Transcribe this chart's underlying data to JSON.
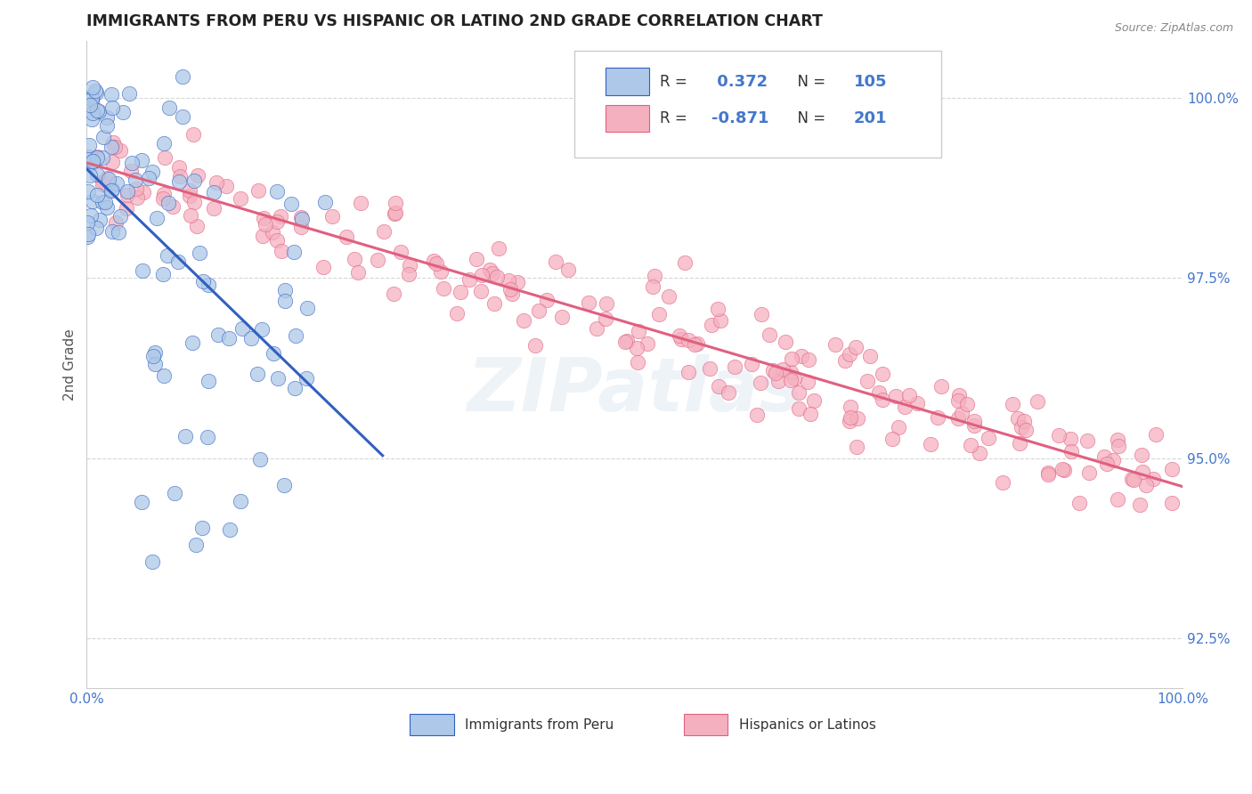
{
  "title": "IMMIGRANTS FROM PERU VS HISPANIC OR LATINO 2ND GRADE CORRELATION CHART",
  "source": "Source: ZipAtlas.com",
  "ylabel": "2nd Grade",
  "xlim": [
    0.0,
    100.0
  ],
  "ylim": [
    91.8,
    100.8
  ],
  "yticks": [
    92.5,
    95.0,
    97.5,
    100.0
  ],
  "xticks": [
    0.0,
    100.0
  ],
  "xtick_labels": [
    "0.0%",
    "100.0%"
  ],
  "ytick_labels": [
    "92.5%",
    "95.0%",
    "97.5%",
    "100.0%"
  ],
  "blue_R": 0.372,
  "blue_N": 105,
  "pink_R": -0.871,
  "pink_N": 201,
  "blue_color": "#adc8e8",
  "pink_color": "#f5b0c0",
  "blue_line_color": "#3060c0",
  "pink_line_color": "#e06080",
  "legend_label_blue": "Immigrants from Peru",
  "legend_label_pink": "Hispanics or Latinos",
  "watermark": "ZIPatlas",
  "grid_color": "#cccccc",
  "title_color": "#222222",
  "axis_label_color": "#555555",
  "tick_label_color": "#4477cc",
  "source_color": "#888888"
}
